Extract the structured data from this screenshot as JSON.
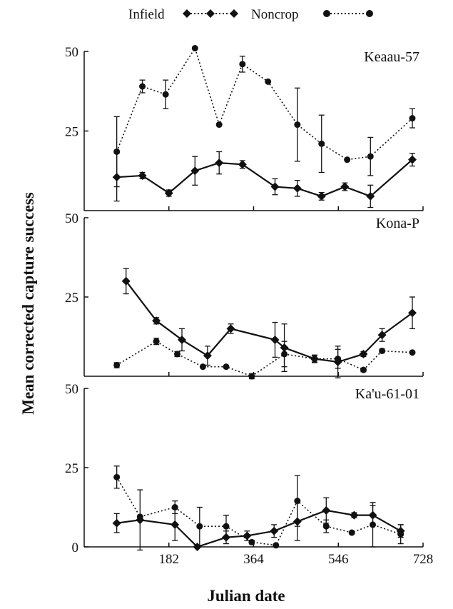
{
  "legend": {
    "infield": "Infield",
    "noncrop": "Noncrop"
  },
  "labels": {
    "ylabel": "Mean corrected capture success",
    "xlabel": "Julian date"
  },
  "colors": {
    "ink": "#111111"
  },
  "chart_data": [
    {
      "type": "line",
      "title": "Keaau-57",
      "ylim": [
        0,
        50
      ],
      "yticks": [
        "50",
        "25"
      ],
      "series": [
        {
          "name": "Infield",
          "style": "solid",
          "marker": "diamond",
          "x": [
            70,
            125,
            182,
            238,
            290,
            340,
            410,
            458,
            510,
            560,
            615,
            705
          ],
          "y": [
            10.5,
            11,
            5.5,
            12.5,
            15,
            14.5,
            7.5,
            7,
            4.5,
            7.5,
            4.5,
            16
          ],
          "err": [
            7.5,
            1,
            1,
            4.5,
            3.5,
            1.2,
            2.5,
            2.5,
            1.2,
            1.2,
            3.5,
            2
          ]
        },
        {
          "name": "Noncrop",
          "style": "dotted",
          "marker": "circle",
          "x": [
            70,
            125,
            175,
            238,
            290,
            340,
            395,
            458,
            510,
            565,
            615,
            705
          ],
          "y": [
            18.5,
            39,
            36.5,
            51,
            27,
            46,
            40.5,
            27,
            21,
            16,
            17,
            29
          ],
          "err": [
            11,
            2,
            4.5,
            0,
            0,
            2.5,
            0,
            11.5,
            9,
            0,
            6,
            3
          ]
        }
      ]
    },
    {
      "type": "line",
      "title": "Kona-P",
      "ylim": [
        0,
        50
      ],
      "yticks": [
        "50",
        "25"
      ],
      "series": [
        {
          "name": "Infield",
          "style": "solid",
          "marker": "diamond",
          "x": [
            90,
            155,
            210,
            265,
            315,
            410,
            430,
            495,
            545,
            600,
            640,
            705
          ],
          "y": [
            30,
            17.5,
            11.5,
            6.5,
            15,
            11.5,
            9,
            5.5,
            4.5,
            7,
            13,
            20
          ],
          "err": [
            4,
            1,
            3.5,
            3,
            1.5,
            5.5,
            7.5,
            1.2,
            5,
            0.8,
            2,
            5
          ]
        },
        {
          "name": "Noncrop",
          "style": "dotted",
          "marker": "circle",
          "x": [
            70,
            155,
            200,
            255,
            305,
            360,
            430,
            495,
            545,
            600,
            640,
            705
          ],
          "y": [
            3.5,
            11,
            7,
            3,
            3,
            0,
            7,
            5.5,
            5.5,
            2,
            8,
            7.5
          ],
          "err": [
            0.8,
            1,
            0.8,
            0,
            0,
            0.8,
            4,
            1,
            3,
            0.6,
            0.6,
            0
          ]
        }
      ]
    },
    {
      "type": "line",
      "title": "Ka'u-61-01",
      "ylim": [
        0,
        50
      ],
      "yticks": [
        "50",
        "25",
        "0"
      ],
      "xticks": [
        "182",
        "364",
        "546",
        "728"
      ],
      "xlim": [
        0,
        728
      ],
      "series": [
        {
          "name": "Infield",
          "style": "solid",
          "marker": "diamond",
          "x": [
            70,
            120,
            195,
            243,
            305,
            350,
            408,
            458,
            520,
            580,
            620,
            680
          ],
          "y": [
            7.5,
            8.5,
            7,
            0,
            3,
            3.5,
            5,
            8,
            11.5,
            10,
            10,
            5
          ],
          "err": [
            3,
            9.5,
            5,
            0,
            2,
            1.5,
            2,
            6,
            4,
            0.8,
            3,
            2
          ]
        },
        {
          "name": "Noncrop",
          "style": "dotted",
          "marker": "circle",
          "x": [
            70,
            120,
            195,
            248,
            305,
            360,
            412,
            458,
            520,
            575,
            620,
            680
          ],
          "y": [
            22,
            9.5,
            12.5,
            6.5,
            6.5,
            1.5,
            0.5,
            14.5,
            6.5,
            4.5,
            7,
            4
          ],
          "err": [
            3.5,
            0,
            2,
            6,
            3.5,
            0.6,
            0,
            8,
            2,
            0,
            7,
            3
          ]
        }
      ]
    }
  ]
}
